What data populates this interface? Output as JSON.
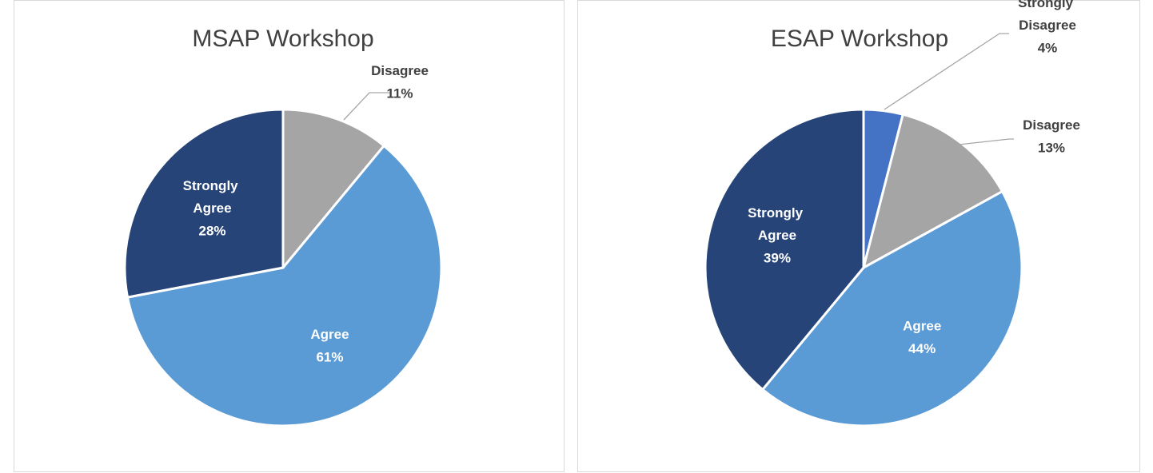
{
  "chart_data": [
    {
      "type": "pie",
      "title": "MSAP Workshop",
      "categories": [
        "Disagree",
        "Agree",
        "Strongly Agree"
      ],
      "values": [
        11,
        61,
        28
      ],
      "value_labels": [
        "11%",
        "61%",
        "28%"
      ],
      "colors": [
        "#a5a5a5",
        "#5b9bd5",
        "#264478"
      ]
    },
    {
      "type": "pie",
      "title": "ESAP Workshop",
      "categories": [
        "Strongly Disagree",
        "Disagree",
        "Agree",
        "Strongly Agree"
      ],
      "values": [
        4,
        13,
        44,
        39
      ],
      "value_labels": [
        "4%",
        "13%",
        "44%",
        "39%"
      ],
      "colors": [
        "#4472c4",
        "#a5a5a5",
        "#5b9bd5",
        "#264478"
      ]
    }
  ]
}
